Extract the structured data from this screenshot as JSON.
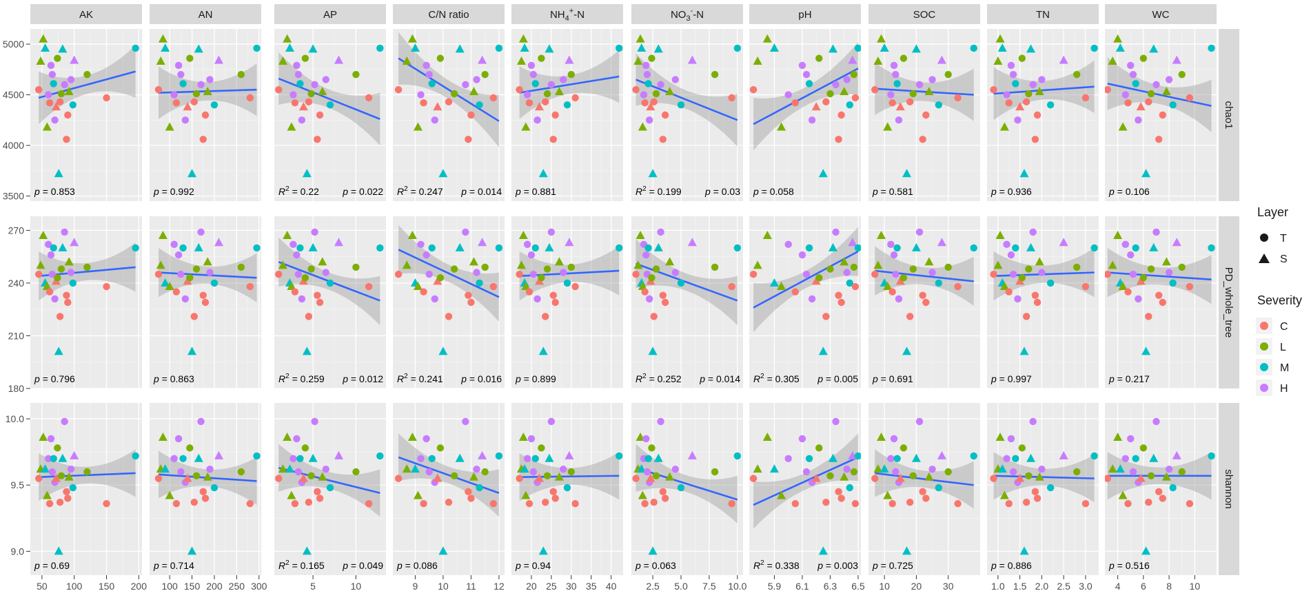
{
  "chart_data": {
    "type": "scatter",
    "description_labels": {
      "legend_layer_title": "Layer",
      "legend_severity_title": "Severity"
    },
    "layers": [
      {
        "code": "T",
        "marker": "circle"
      },
      {
        "code": "S",
        "marker": "triangle"
      }
    ],
    "severity": [
      {
        "code": "C",
        "color": "#F8766D"
      },
      {
        "code": "L",
        "color": "#7CAE00"
      },
      {
        "code": "M",
        "color": "#00BFC4"
      },
      {
        "code": "H",
        "color": "#C77CFF"
      }
    ],
    "colors": {
      "panel_bg": "#EBEBEB",
      "strip_bg": "#D9D9D9",
      "grid_major": "#FFFFFF",
      "grid_minor": "#F4F4F4",
      "fit_line": "#3366FF",
      "ribbon": "#999999",
      "text": "#1A1A1A",
      "axis_text": "#4D4D4D"
    },
    "columns": [
      {
        "name": "AK",
        "ticks": [
          50,
          100,
          150,
          200
        ],
        "tick_labels": [
          "50",
          "100",
          "150",
          "200"
        ],
        "xlim": [
          32,
          205
        ],
        "x": [
          45,
          48,
          52,
          55,
          58,
          60,
          62,
          64,
          66,
          68,
          70,
          72,
          74,
          76,
          78,
          80,
          82,
          85,
          88,
          90,
          92,
          95,
          98,
          100,
          120,
          150,
          195
        ]
      },
      {
        "name": "AN",
        "ticks": [
          100,
          150,
          200,
          250,
          300
        ],
        "tick_labels": [
          "100",
          "150",
          "200",
          "250",
          "300"
        ],
        "xlim": [
          55,
          305
        ],
        "x": [
          75,
          80,
          85,
          90,
          100,
          110,
          115,
          120,
          125,
          130,
          135,
          140,
          145,
          150,
          155,
          160,
          165,
          170,
          175,
          180,
          185,
          190,
          200,
          210,
          260,
          280,
          295
        ]
      },
      {
        "name": "AP",
        "ticks": [
          5,
          10
        ],
        "tick_labels": [
          "5",
          "10"
        ],
        "xlim": [
          0.5,
          13.5
        ],
        "x": [
          1.0,
          1.5,
          2.0,
          2.3,
          2.5,
          2.7,
          2.9,
          3.1,
          3.3,
          3.5,
          3.7,
          3.9,
          4.1,
          4.3,
          4.5,
          4.8,
          5.0,
          5.2,
          5.5,
          5.8,
          6.1,
          6.5,
          7.0,
          8.0,
          10.0,
          11.5,
          12.8
        ]
      },
      {
        "name": "C/N ratio",
        "ticks": [
          9,
          10,
          11,
          12
        ],
        "tick_labels": [
          "9",
          "10",
          "11",
          "12"
        ],
        "xlim": [
          8.2,
          12.2
        ],
        "x": [
          8.4,
          8.7,
          8.9,
          9.0,
          9.1,
          9.2,
          9.3,
          9.4,
          9.5,
          9.6,
          9.7,
          9.8,
          9.9,
          10.0,
          10.2,
          10.4,
          10.6,
          10.8,
          10.9,
          11.0,
          11.1,
          11.2,
          11.3,
          11.4,
          11.5,
          11.8,
          12.0
        ]
      },
      {
        "name": "NH4+-N",
        "label_main": "NH",
        "label_sub": "4",
        "label_sup": "+",
        "label_tail": "-N",
        "ticks": [
          20,
          25,
          30,
          35,
          40
        ],
        "tick_labels": [
          "20",
          "25",
          "30",
          "35",
          "40"
        ],
        "xlim": [
          15,
          43
        ],
        "x": [
          17,
          17.5,
          18,
          18.3,
          18.6,
          19,
          19.5,
          20,
          20.5,
          21,
          21.5,
          22,
          22.5,
          23,
          23.5,
          24,
          24.5,
          25,
          25.5,
          26,
          27,
          28,
          29,
          29.5,
          30,
          31,
          42
        ]
      },
      {
        "name": "NO3--N",
        "label_main": "NO",
        "label_sub": "3",
        "label_sup": "-",
        "label_tail": "-N",
        "ticks": [
          2.5,
          5.0,
          7.5,
          10.0
        ],
        "tick_labels": [
          "2.5",
          "5.0",
          "7.5",
          "10.0"
        ],
        "xlim": [
          0.6,
          10.5
        ],
        "x": [
          1.0,
          1.2,
          1.4,
          1.5,
          1.6,
          1.7,
          1.8,
          1.9,
          2.0,
          2.1,
          2.2,
          2.3,
          2.4,
          2.5,
          2.6,
          2.8,
          3.0,
          3.2,
          3.4,
          3.6,
          4.0,
          4.5,
          5.0,
          6.0,
          8.0,
          9.5,
          10.0
        ]
      },
      {
        "name": "pH",
        "ticks": [
          5.9,
          6.1,
          6.3,
          6.5
        ],
        "tick_labels": [
          "5.9",
          "6.1",
          "6.3",
          "6.5"
        ],
        "xlim": [
          5.72,
          6.52
        ],
        "x": [
          5.75,
          5.78,
          5.85,
          5.9,
          5.95,
          6.0,
          6.05,
          6.1,
          6.13,
          6.15,
          6.17,
          6.2,
          6.22,
          6.25,
          6.27,
          6.3,
          6.32,
          6.34,
          6.36,
          6.38,
          6.4,
          6.42,
          6.44,
          6.46,
          6.47,
          6.48,
          6.5
        ]
      },
      {
        "name": "SOC",
        "ticks": [
          10,
          20,
          30
        ],
        "tick_labels": [
          "10",
          "20",
          "30"
        ],
        "xlim": [
          5,
          40
        ],
        "x": [
          7,
          8,
          9,
          10,
          11,
          12,
          12.5,
          13,
          13.5,
          14,
          14.5,
          15,
          16,
          17,
          18,
          19,
          20,
          21,
          22,
          23,
          24,
          25,
          27,
          28,
          30,
          33,
          38
        ]
      },
      {
        "name": "TN",
        "ticks": [
          1.0,
          1.5,
          2.0,
          2.5,
          3.0
        ],
        "tick_labels": [
          "1.0",
          "1.5",
          "2.0",
          "2.5",
          "3.0"
        ],
        "xlim": [
          0.75,
          3.3
        ],
        "x": [
          0.9,
          1.0,
          1.05,
          1.1,
          1.15,
          1.2,
          1.25,
          1.3,
          1.35,
          1.4,
          1.45,
          1.5,
          1.55,
          1.6,
          1.65,
          1.7,
          1.75,
          1.8,
          1.85,
          1.9,
          1.95,
          2.0,
          2.2,
          2.5,
          2.8,
          3.0,
          3.2
        ]
      },
      {
        "name": "WC",
        "ticks": [
          4,
          6,
          8,
          10
        ],
        "tick_labels": [
          "4",
          "6",
          "8",
          "10"
        ],
        "xlim": [
          3,
          11.7
        ],
        "x": [
          3.2,
          3.6,
          4.0,
          4.2,
          4.4,
          4.6,
          4.8,
          5.0,
          5.2,
          5.4,
          5.6,
          5.8,
          6.0,
          6.2,
          6.4,
          6.6,
          6.8,
          7.0,
          7.2,
          7.5,
          7.8,
          8.0,
          8.3,
          8.6,
          9.0,
          9.6,
          11.3
        ]
      }
    ],
    "rows": [
      {
        "name": "chao1",
        "ylim": [
          3450,
          5150
        ],
        "ticks": [
          3500,
          4000,
          4500,
          5000
        ],
        "tick_labels": [
          "3500",
          "4000",
          "4500",
          "5000"
        ],
        "band": 260,
        "y": [
          4550,
          4830,
          5050,
          4960,
          4180,
          4500,
          4420,
          4790,
          4700,
          4610,
          4250,
          4380,
          4860,
          3720,
          4430,
          4510,
          4950,
          4600,
          4060,
          4300,
          4530,
          4650,
          4400,
          4840,
          4700,
          4470,
          4960
        ],
        "severity": [
          "C",
          "L",
          "L",
          "M",
          "L",
          "H",
          "C",
          "H",
          "H",
          "M",
          "H",
          "C",
          "L",
          "M",
          "C",
          "L",
          "M",
          "H",
          "C",
          "C",
          "L",
          "H",
          "M",
          "H",
          "L",
          "C",
          "M"
        ],
        "layer": [
          "T",
          "S",
          "S",
          "S",
          "S",
          "T",
          "T",
          "T",
          "T",
          "T",
          "T",
          "S",
          "T",
          "S",
          "T",
          "T",
          "S",
          "T",
          "T",
          "T",
          "S",
          "T",
          "T",
          "S",
          "T",
          "T",
          "T"
        ],
        "fits": [
          [
            4470,
            4730
          ],
          [
            4520,
            4550
          ],
          [
            4660,
            4260
          ],
          [
            4860,
            4240
          ],
          [
            4520,
            4680
          ],
          [
            4650,
            4250
          ],
          [
            4210,
            4760
          ],
          [
            4560,
            4500
          ],
          [
            4510,
            4580
          ],
          [
            4610,
            4390
          ]
        ],
        "stats": [
          {
            "r2": "",
            "p": "0.853"
          },
          {
            "r2": "",
            "p": "0.992"
          },
          {
            "r2": "0.22",
            "p": "0.022"
          },
          {
            "r2": "0.247",
            "p": "0.014"
          },
          {
            "r2": "",
            "p": "0.881"
          },
          {
            "r2": "0.199",
            "p": "0.03"
          },
          {
            "r2": "",
            "p": "0.058"
          },
          {
            "r2": "",
            "p": "0.581"
          },
          {
            "r2": "",
            "p": "0.936"
          },
          {
            "r2": "",
            "p": "0.106"
          }
        ]
      },
      {
        "name": "PD_whole_tree",
        "ylim": [
          180,
          278
        ],
        "ticks": [
          180,
          210,
          240,
          270
        ],
        "tick_labels": [
          "180",
          "210",
          "240",
          "270"
        ],
        "band": 14,
        "y": [
          245,
          250,
          267,
          240,
          238,
          262,
          235,
          256,
          245,
          260,
          231,
          241,
          243,
          201,
          221,
          248,
          260,
          269,
          233,
          229,
          252,
          246,
          240,
          263,
          249,
          238,
          260
        ],
        "severity": [
          "C",
          "L",
          "L",
          "M",
          "L",
          "H",
          "C",
          "H",
          "H",
          "M",
          "H",
          "C",
          "L",
          "M",
          "C",
          "L",
          "M",
          "H",
          "C",
          "C",
          "L",
          "H",
          "M",
          "H",
          "L",
          "C",
          "M"
        ],
        "layer": [
          "T",
          "S",
          "S",
          "S",
          "S",
          "T",
          "T",
          "T",
          "T",
          "T",
          "T",
          "S",
          "T",
          "S",
          "T",
          "T",
          "S",
          "T",
          "T",
          "T",
          "S",
          "T",
          "T",
          "S",
          "T",
          "T",
          "T"
        ],
        "fits": [
          [
            244,
            249
          ],
          [
            246,
            243
          ],
          [
            252,
            230
          ],
          [
            259,
            232
          ],
          [
            244,
            247
          ],
          [
            251,
            230
          ],
          [
            226,
            258
          ],
          [
            247,
            241
          ],
          [
            244,
            246
          ],
          [
            246,
            242
          ]
        ],
        "stats": [
          {
            "r2": "",
            "p": "0.796"
          },
          {
            "r2": "",
            "p": "0.863"
          },
          {
            "r2": "0.259",
            "p": "0.012"
          },
          {
            "r2": "0.241",
            "p": "0.016"
          },
          {
            "r2": "",
            "p": "0.899"
          },
          {
            "r2": "0.252",
            "p": "0.014"
          },
          {
            "r2": "0.305",
            "p": "0.005"
          },
          {
            "r2": "",
            "p": "0.691"
          },
          {
            "r2": "",
            "p": "0.997"
          },
          {
            "r2": "",
            "p": "0.217"
          }
        ]
      },
      {
        "name": "shannon",
        "ylim": [
          8.82,
          10.12
        ],
        "ticks": [
          9.0,
          9.5,
          10.0
        ],
        "tick_labels": [
          "9.0",
          "9.5",
          "10.0"
        ],
        "band": 0.18,
        "y": [
          9.55,
          9.62,
          9.86,
          9.62,
          9.42,
          9.7,
          9.36,
          9.85,
          9.6,
          9.7,
          9.52,
          9.55,
          9.78,
          9.0,
          9.37,
          9.57,
          9.7,
          9.98,
          9.45,
          9.4,
          9.56,
          9.62,
          9.48,
          9.72,
          9.6,
          9.36,
          9.72
        ],
        "severity": [
          "C",
          "L",
          "L",
          "M",
          "L",
          "H",
          "C",
          "H",
          "H",
          "M",
          "H",
          "C",
          "L",
          "M",
          "C",
          "L",
          "M",
          "H",
          "C",
          "C",
          "L",
          "H",
          "M",
          "H",
          "L",
          "C",
          "M"
        ],
        "layer": [
          "T",
          "S",
          "S",
          "S",
          "S",
          "T",
          "T",
          "T",
          "T",
          "T",
          "T",
          "S",
          "T",
          "S",
          "T",
          "T",
          "S",
          "T",
          "T",
          "T",
          "S",
          "T",
          "T",
          "S",
          "T",
          "T",
          "T"
        ],
        "fits": [
          [
            9.56,
            9.59
          ],
          [
            9.58,
            9.53
          ],
          [
            9.63,
            9.44
          ],
          [
            9.71,
            9.44
          ],
          [
            9.56,
            9.57
          ],
          [
            9.63,
            9.39
          ],
          [
            9.35,
            9.71
          ],
          [
            9.59,
            9.5
          ],
          [
            9.57,
            9.55
          ],
          [
            9.57,
            9.57
          ]
        ],
        "stats": [
          {
            "r2": "",
            "p": "0.69"
          },
          {
            "r2": "",
            "p": "0.714"
          },
          {
            "r2": "0.165",
            "p": "0.049"
          },
          {
            "r2": "",
            "p": "0.086"
          },
          {
            "r2": "",
            "p": "0.94"
          },
          {
            "r2": "",
            "p": "0.063"
          },
          {
            "r2": "0.338",
            "p": "0.003"
          },
          {
            "r2": "",
            "p": "0.725"
          },
          {
            "r2": "",
            "p": "0.886"
          },
          {
            "r2": "",
            "p": "0.516"
          }
        ]
      }
    ]
  }
}
